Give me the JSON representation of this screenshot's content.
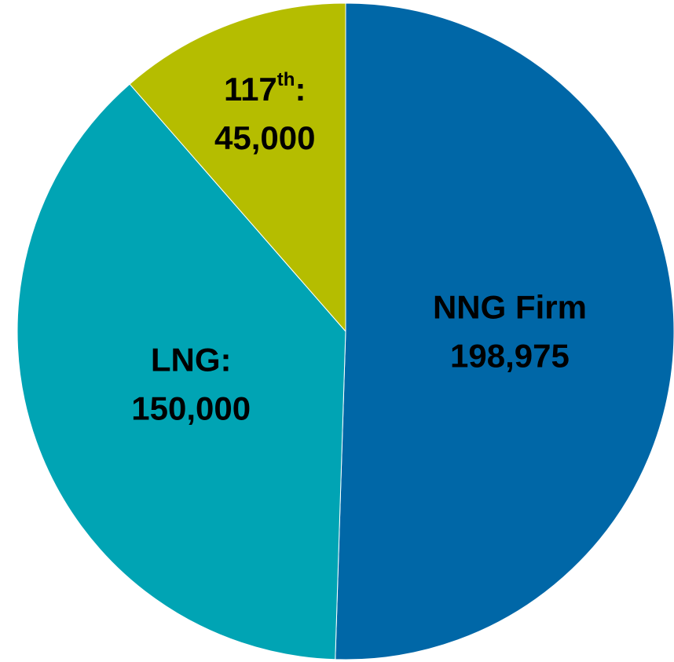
{
  "chart_data": {
    "type": "pie",
    "categories": [
      "NNG Firm",
      "LNG:",
      "117th:"
    ],
    "values": [
      198975,
      150000,
      45000
    ],
    "value_labels": [
      "198,975",
      "150,000",
      "45,000"
    ],
    "colors": [
      "#0067a7",
      "#00a4b4",
      "#b5bd00"
    ]
  }
}
